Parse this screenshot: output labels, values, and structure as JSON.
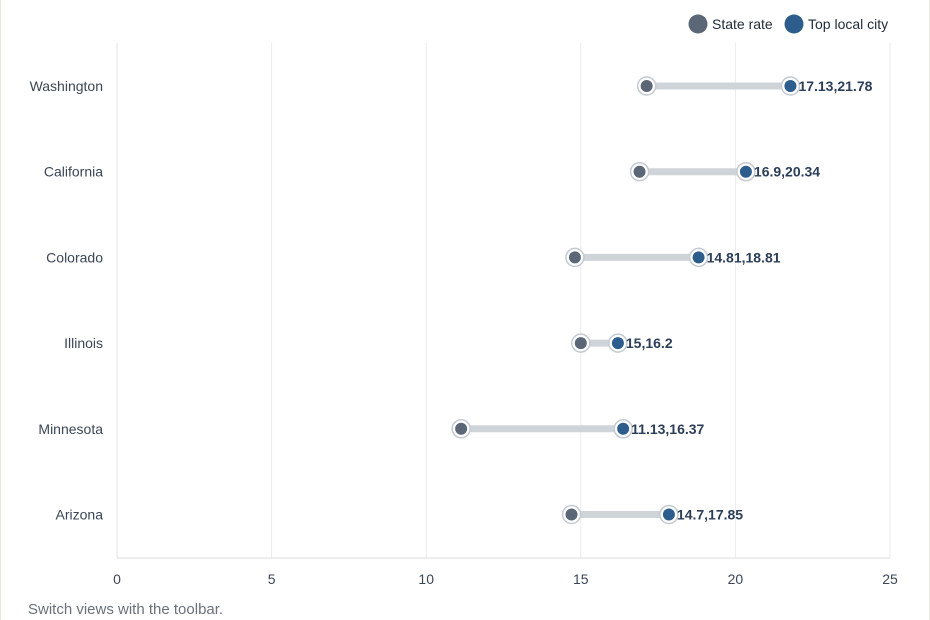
{
  "chart_data": {
    "type": "dumbbell",
    "categories": [
      "Washington",
      "California",
      "Colorado",
      "Illinois",
      "Minnesota",
      "Arizona"
    ],
    "series": [
      {
        "name": "State rate",
        "color": "#5b6677",
        "values": [
          17.13,
          16.9,
          14.81,
          15,
          11.13,
          14.7
        ]
      },
      {
        "name": "Top local city",
        "color": "#2c5d8c",
        "values": [
          21.78,
          20.34,
          18.81,
          16.2,
          16.37,
          17.85
        ]
      }
    ],
    "data_labels": [
      "17.13,21.78",
      "16.9,20.34",
      "14.81,18.81",
      "15,16.2",
      "11.13,16.37",
      "14.7,17.85"
    ],
    "xlim": [
      0,
      25
    ],
    "x_ticks": [
      0,
      5,
      10,
      15,
      20,
      25
    ],
    "grid": true,
    "legend_position": "top-right",
    "connector_color": "#cfd4d9"
  },
  "footer_text": "Switch views with the toolbar."
}
